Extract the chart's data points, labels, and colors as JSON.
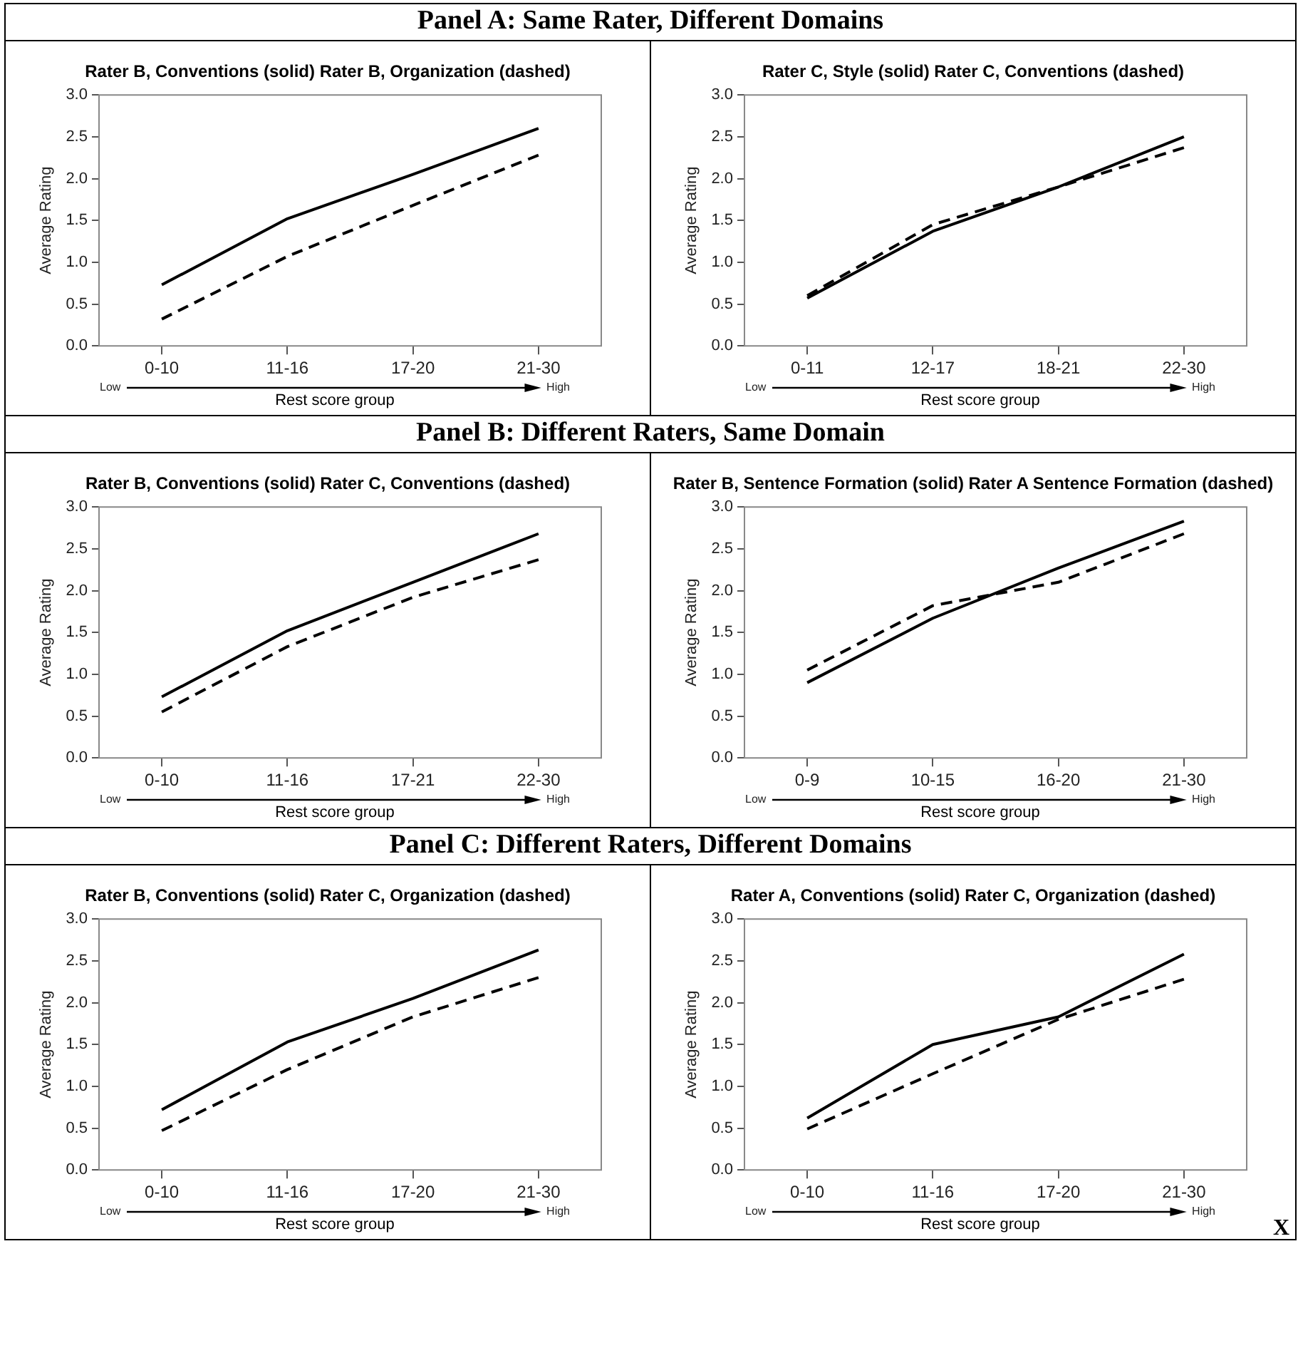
{
  "chart_data": [
    {
      "type": "line",
      "title": "Panel A: Same Rater, Different Domains",
      "subtitle": "Rater B, Conventions (solid) Rater B, Organization (dashed)",
      "xlabel": "Rest score group",
      "ylabel": "Average Rating",
      "annotations": [
        "Low",
        "High"
      ],
      "categories": [
        "0-10",
        "11-16",
        "17-20",
        "21-30"
      ],
      "ylim": [
        0,
        3
      ],
      "yticks": [
        {
          "value": 0,
          "label": "0.0"
        },
        {
          "value": 0.5,
          "label": "0.5"
        },
        {
          "value": 1,
          "label": "1.0"
        },
        {
          "value": 1.5,
          "label": "1.5"
        },
        {
          "value": 2,
          "label": "2.0"
        },
        {
          "value": 2.5,
          "label": "2.5"
        },
        {
          "value": 3,
          "label": "3.0"
        }
      ],
      "grid": false,
      "legend": false,
      "marker": "none",
      "series": [
        {
          "color": "#000000",
          "line_style": "solid",
          "values": [
            0.73,
            1.52,
            2.05,
            2.6
          ]
        },
        {
          "color": "#000000",
          "line_style": "dashed",
          "values": [
            0.32,
            1.07,
            1.68,
            2.28
          ]
        }
      ]
    },
    {
      "type": "line",
      "subtitle": "Rater C, Style (solid) Rater C, Conventions (dashed)",
      "xlabel": "Rest score group",
      "ylabel": "Average Rating",
      "annotations": [
        "Low",
        "High"
      ],
      "categories": [
        "0-11",
        "12-17",
        "18-21",
        "22-30"
      ],
      "ylim": [
        0,
        3
      ],
      "yticks": [
        {
          "value": 0,
          "label": "0.0"
        },
        {
          "value": 0.5,
          "label": "0.5"
        },
        {
          "value": 1,
          "label": "1.0"
        },
        {
          "value": 1.5,
          "label": "1.5"
        },
        {
          "value": 2,
          "label": "2.0"
        },
        {
          "value": 2.5,
          "label": "2.5"
        },
        {
          "value": 3,
          "label": "3.0"
        }
      ],
      "grid": false,
      "legend": false,
      "marker": "none",
      "series": [
        {
          "color": "#000000",
          "line_style": "solid",
          "values": [
            0.57,
            1.37,
            1.9,
            2.5
          ]
        },
        {
          "color": "#000000",
          "line_style": "dashed",
          "values": [
            0.6,
            1.45,
            1.9,
            2.37
          ]
        }
      ]
    },
    {
      "type": "line",
      "title": "Panel B: Different Raters, Same Domain",
      "subtitle": "Rater B, Conventions (solid) Rater C, Conventions (dashed)",
      "xlabel": "Rest score group",
      "ylabel": "Average Rating",
      "annotations": [
        "Low",
        "High"
      ],
      "categories": [
        "0-10",
        "11-16",
        "17-21",
        "22-30"
      ],
      "ylim": [
        0,
        3
      ],
      "yticks": [
        {
          "value": 0,
          "label": "0.0"
        },
        {
          "value": 0.5,
          "label": "0.5"
        },
        {
          "value": 1,
          "label": "1.0"
        },
        {
          "value": 1.5,
          "label": "1.5"
        },
        {
          "value": 2,
          "label": "2.0"
        },
        {
          "value": 2.5,
          "label": "2.5"
        },
        {
          "value": 3,
          "label": "3.0"
        }
      ],
      "grid": false,
      "legend": false,
      "marker": "none",
      "series": [
        {
          "color": "#000000",
          "line_style": "solid",
          "values": [
            0.73,
            1.52,
            2.1,
            2.68
          ]
        },
        {
          "color": "#000000",
          "line_style": "dashed",
          "values": [
            0.55,
            1.33,
            1.92,
            2.37
          ]
        }
      ]
    },
    {
      "type": "line",
      "subtitle": "Rater B, Sentence Formation (solid) Rater A Sentence Formation (dashed)",
      "xlabel": "Rest score group",
      "ylabel": "Average Rating",
      "annotations": [
        "Low",
        "High"
      ],
      "categories": [
        "0-9",
        "10-15",
        "16-20",
        "21-30"
      ],
      "ylim": [
        0,
        3
      ],
      "yticks": [
        {
          "value": 0,
          "label": "0.0"
        },
        {
          "value": 0.5,
          "label": "0.5"
        },
        {
          "value": 1,
          "label": "1.0"
        },
        {
          "value": 1.5,
          "label": "1.5"
        },
        {
          "value": 2,
          "label": "2.0"
        },
        {
          "value": 2.5,
          "label": "2.5"
        },
        {
          "value": 3,
          "label": "3.0"
        }
      ],
      "grid": false,
      "legend": false,
      "marker": "none",
      "series": [
        {
          "color": "#000000",
          "line_style": "solid",
          "values": [
            0.9,
            1.67,
            2.27,
            2.83
          ]
        },
        {
          "color": "#000000",
          "line_style": "dashed",
          "values": [
            1.05,
            1.82,
            2.1,
            2.68
          ]
        }
      ]
    },
    {
      "type": "line",
      "title": "Panel C: Different Raters, Different Domains",
      "subtitle": "Rater B, Conventions (solid) Rater C, Organization (dashed)",
      "xlabel": "Rest score group",
      "ylabel": "Average Rating",
      "annotations": [
        "Low",
        "High"
      ],
      "categories": [
        "0-10",
        "11-16",
        "17-20",
        "21-30"
      ],
      "ylim": [
        0,
        3
      ],
      "yticks": [
        {
          "value": 0,
          "label": "0.0"
        },
        {
          "value": 0.5,
          "label": "0.5"
        },
        {
          "value": 1,
          "label": "1.0"
        },
        {
          "value": 1.5,
          "label": "1.5"
        },
        {
          "value": 2,
          "label": "2.0"
        },
        {
          "value": 2.5,
          "label": "2.5"
        },
        {
          "value": 3,
          "label": "3.0"
        }
      ],
      "grid": false,
      "legend": false,
      "marker": "none",
      "series": [
        {
          "color": "#000000",
          "line_style": "solid",
          "values": [
            0.72,
            1.53,
            2.05,
            2.63
          ]
        },
        {
          "color": "#000000",
          "line_style": "dashed",
          "values": [
            0.47,
            1.2,
            1.83,
            2.3
          ]
        }
      ]
    },
    {
      "type": "line",
      "subtitle": "Rater A, Conventions (solid) Rater C, Organization (dashed)",
      "xlabel": "Rest score group",
      "ylabel": "Average Rating",
      "annotations": [
        "Low",
        "High",
        "X"
      ],
      "categories": [
        "0-10",
        "11-16",
        "17-20",
        "21-30"
      ],
      "ylim": [
        0,
        3
      ],
      "yticks": [
        {
          "value": 0,
          "label": "0.0"
        },
        {
          "value": 0.5,
          "label": "0.5"
        },
        {
          "value": 1,
          "label": "1.0"
        },
        {
          "value": 1.5,
          "label": "1.5"
        },
        {
          "value": 2,
          "label": "2.0"
        },
        {
          "value": 2.5,
          "label": "2.5"
        },
        {
          "value": 3,
          "label": "3.0"
        }
      ],
      "grid": false,
      "legend": false,
      "marker": "none",
      "series": [
        {
          "color": "#000000",
          "line_style": "solid",
          "values": [
            0.62,
            1.5,
            1.83,
            2.58
          ]
        },
        {
          "color": "#000000",
          "line_style": "dashed",
          "values": [
            0.49,
            1.15,
            1.8,
            2.28
          ]
        }
      ]
    }
  ]
}
